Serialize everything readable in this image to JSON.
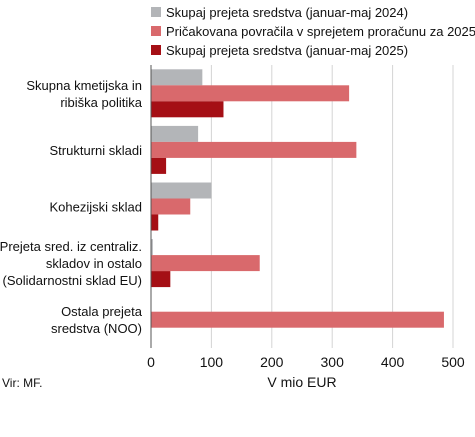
{
  "chart_data": {
    "type": "bar",
    "orientation": "horizontal",
    "categories": [
      [
        "Skupna kmetijska in",
        "ribiška politika"
      ],
      [
        "Strukturni skladi"
      ],
      [
        "Kohezijski sklad"
      ],
      [
        "Prejeta sred. iz centraliz.",
        "skladov in ostalo",
        "(Solidarnostni sklad EU)"
      ],
      [
        "Ostala prejeta",
        "sredstva (NOO)"
      ]
    ],
    "series": [
      {
        "name": "Skupaj prejeta sredstva (januar-maj 2024)",
        "color": "#b3b5b8",
        "values": [
          85,
          78,
          100,
          3,
          0
        ]
      },
      {
        "name": "Pričakovana povračila v sprejetem proračunu za 2025",
        "color": "#d9696c",
        "values": [
          328,
          340,
          65,
          180,
          485
        ]
      },
      {
        "name": "Skupaj prejeta sredstva (januar-maj 2025)",
        "color": "#a50f15",
        "values": [
          120,
          25,
          12,
          32,
          0
        ]
      }
    ],
    "xlim": [
      0,
      500
    ],
    "xticks": [
      "0",
      "100",
      "200",
      "300",
      "400",
      "500"
    ],
    "xlabel": "V mio EUR",
    "grid": true,
    "legend": "top"
  },
  "source_note": "Vir: MF."
}
